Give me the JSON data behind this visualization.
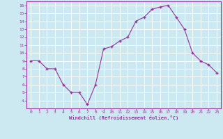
{
  "x": [
    0,
    1,
    2,
    3,
    4,
    5,
    6,
    7,
    8,
    9,
    10,
    11,
    12,
    13,
    14,
    15,
    16,
    17,
    18,
    19,
    20,
    21,
    22,
    23
  ],
  "y": [
    9,
    9,
    8,
    8,
    6,
    5,
    5,
    3.5,
    6,
    10.5,
    10.8,
    11.5,
    12,
    14,
    14.5,
    15.5,
    15.8,
    16,
    14.5,
    13,
    10,
    9,
    8.5,
    7.5
  ],
  "line_color": "#993399",
  "marker": "+",
  "marker_color": "#993399",
  "bg_color": "#cce8f0",
  "grid_color": "#ffffff",
  "xlabel": "Windchill (Refroidissement éolien,°C)",
  "xlabel_color": "#993399",
  "tick_color": "#993399",
  "spine_color": "#993399",
  "xlim": [
    -0.5,
    23.5
  ],
  "ylim": [
    3.0,
    16.5
  ],
  "yticks": [
    4,
    5,
    6,
    7,
    8,
    9,
    10,
    11,
    12,
    13,
    14,
    15,
    16
  ],
  "xticks": [
    0,
    1,
    2,
    3,
    4,
    5,
    6,
    7,
    8,
    9,
    10,
    11,
    12,
    13,
    14,
    15,
    16,
    17,
    18,
    19,
    20,
    21,
    22,
    23
  ]
}
